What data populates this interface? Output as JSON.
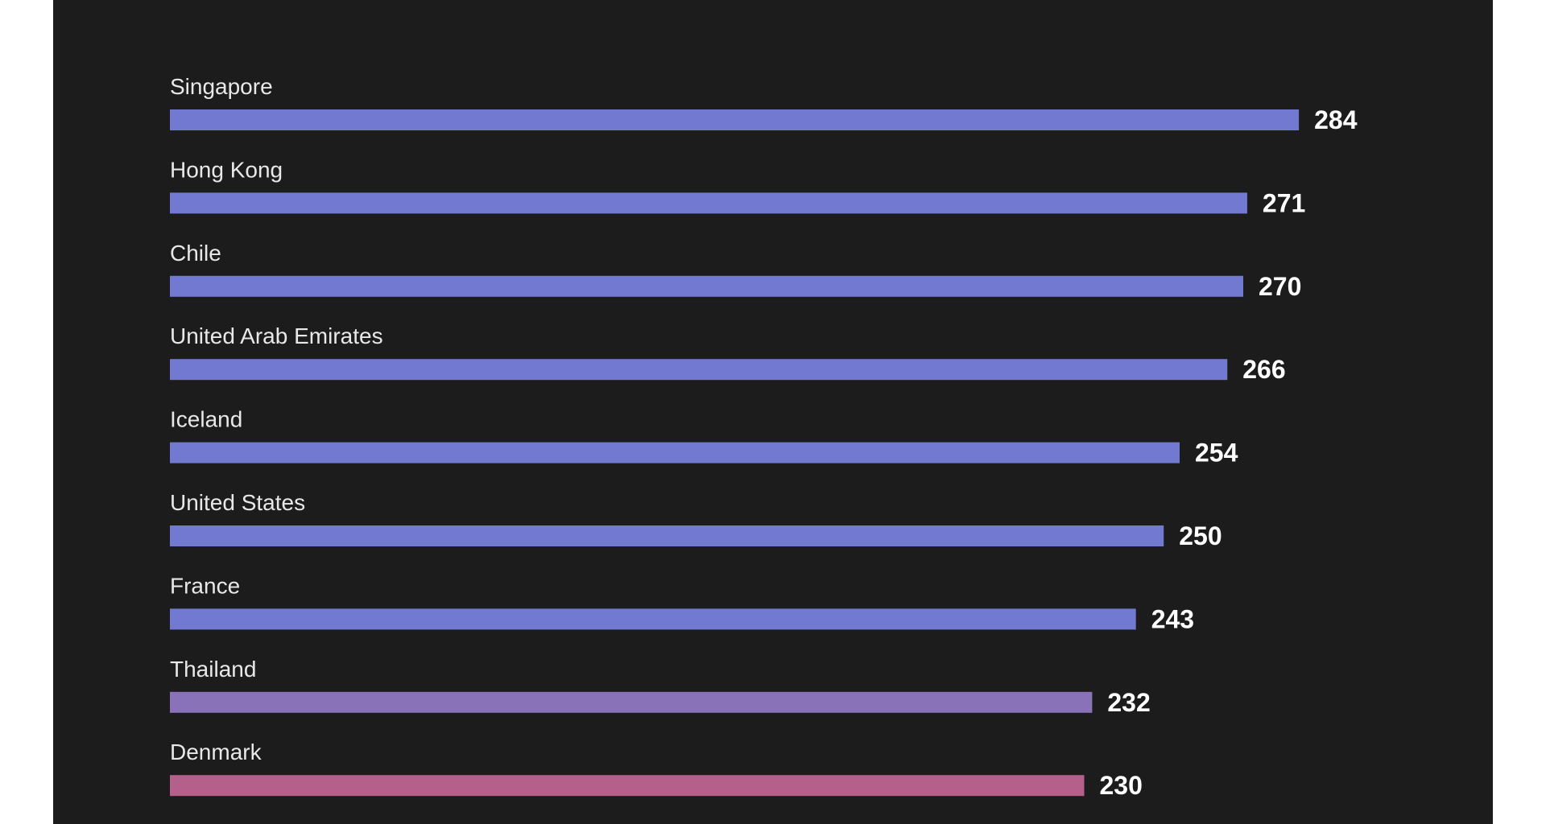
{
  "chart_data": {
    "type": "bar",
    "orientation": "horizontal",
    "title": "",
    "xlabel": "",
    "ylabel": "",
    "grid": false,
    "categories": [
      "Singapore",
      "Hong Kong",
      "Chile",
      "United Arab Emirates",
      "Iceland",
      "United States",
      "France",
      "Thailand",
      "Denmark"
    ],
    "values": [
      284,
      271,
      270,
      266,
      254,
      250,
      243,
      232,
      230
    ],
    "value_labels": [
      "284",
      "271",
      "270",
      "266",
      "254",
      "250",
      "243",
      "232",
      "230"
    ],
    "bar_colors": [
      "#7279d1",
      "#7279d1",
      "#7279d1",
      "#7279d1",
      "#7279d1",
      "#7279d1",
      "#7279d1",
      "#8a72b8",
      "#b5608a"
    ]
  },
  "colors": {
    "background": "#1c1c1c",
    "page": "#ffffff",
    "label_text": "#e8e8e8",
    "value_text": "#ffffff"
  }
}
